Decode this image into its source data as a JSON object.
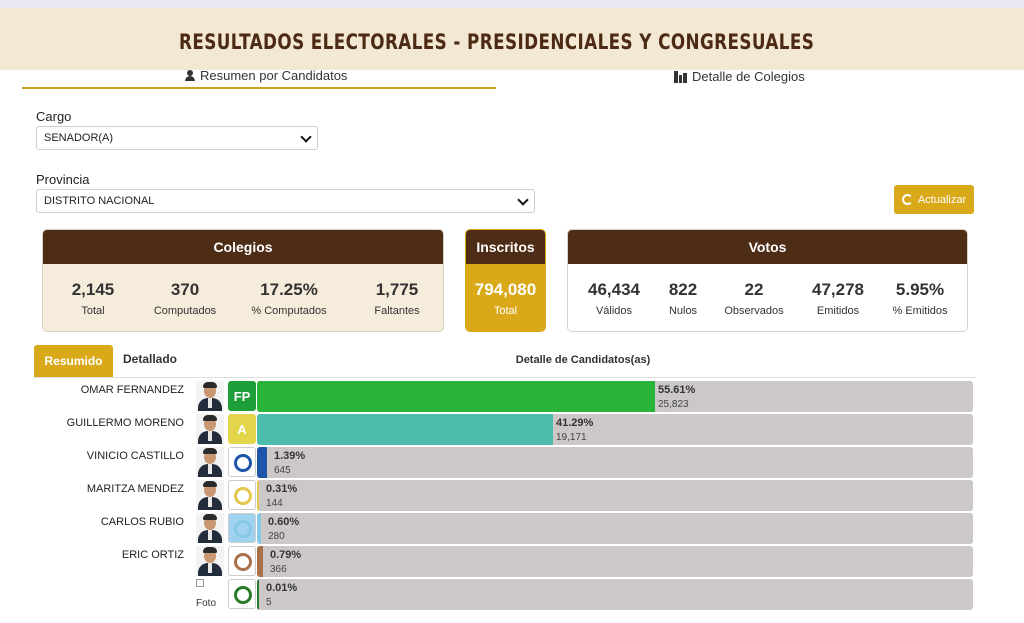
{
  "header": {
    "title": "RESULTADOS ELECTORALES - PRESIDENCIALES Y CONGRESUALES"
  },
  "tabs": {
    "summary": "Resumen por Candidatos",
    "detail": "Detalle de Colegios"
  },
  "filters": {
    "cargo_label": "Cargo",
    "cargo_value": "SENADOR(A)",
    "provincia_label": "Provincia",
    "provincia_value": "DISTRITO NACIONAL"
  },
  "update_button": "Actualizar",
  "colegios": {
    "title": "Colegios",
    "stats": [
      {
        "value": "2,145",
        "label": "Total"
      },
      {
        "value": "370",
        "label": "Computados"
      },
      {
        "value": "17.25%",
        "label": "% Computados"
      },
      {
        "value": "1,775",
        "label": "Faltantes"
      }
    ]
  },
  "inscritos": {
    "title": "Inscritos",
    "value": "794,080",
    "label": "Total"
  },
  "votos": {
    "title": "Votos",
    "stats": [
      {
        "value": "46,434",
        "label": "Válidos"
      },
      {
        "value": "822",
        "label": "Nulos"
      },
      {
        "value": "22",
        "label": "Observados"
      },
      {
        "value": "47,278",
        "label": "Emitidos"
      },
      {
        "value": "5.95%",
        "label": "% Emitidos"
      }
    ]
  },
  "results": {
    "tab_summary": "Resumido",
    "tab_detail": "Detallado",
    "header": "Detalle de Candidatos(as)",
    "candidates": [
      {
        "name": "OMAR FERNANDEZ",
        "pct": "55.61%",
        "votes": "25,823",
        "share": 55.61,
        "bar_color": "#28b33b",
        "logo": "fp-logo",
        "logo_text": "FP",
        "logo_color": "#1e9e38"
      },
      {
        "name": "GUILLERMO MORENO",
        "pct": "41.29%",
        "votes": "19,171",
        "share": 41.29,
        "bar_color": "#4bbdaa",
        "logo": "alianza-pais-logo",
        "logo_text": "A",
        "logo_color": "#e4d64a"
      },
      {
        "name": "VINICIO CASTILLO",
        "pct": "1.39%",
        "votes": "645",
        "share": 1.39,
        "bar_color": "#1f55a8",
        "logo": "fnp-logo",
        "logo_text": "",
        "logo_color": "#ffffff"
      },
      {
        "name": "MARITZA MENDEZ",
        "pct": "0.31%",
        "votes": "144",
        "share": 0.31,
        "bar_color": "#e3c64a",
        "logo": "party-logo-map",
        "logo_text": "",
        "logo_color": "#ffffff"
      },
      {
        "name": "CARLOS RUBIO",
        "pct": "0.60%",
        "votes": "280",
        "share": 0.6,
        "bar_color": "#86c9e6",
        "logo": "party-logo-bird",
        "logo_text": "",
        "logo_color": "#9fd2ee"
      },
      {
        "name": "ERIC ORTIZ",
        "pct": "0.79%",
        "votes": "366",
        "share": 0.79,
        "bar_color": "#a9704a",
        "logo": "party-logo-rings",
        "logo_text": "",
        "logo_color": "#ffffff"
      },
      {
        "name": "",
        "photo_alt": "Foto",
        "pct": "0.01%",
        "votes": "5",
        "share": 0.01,
        "bar_color": "#2a7a2a",
        "logo": "party-logo-globe",
        "logo_text": "",
        "logo_color": "#ffffff"
      }
    ]
  }
}
